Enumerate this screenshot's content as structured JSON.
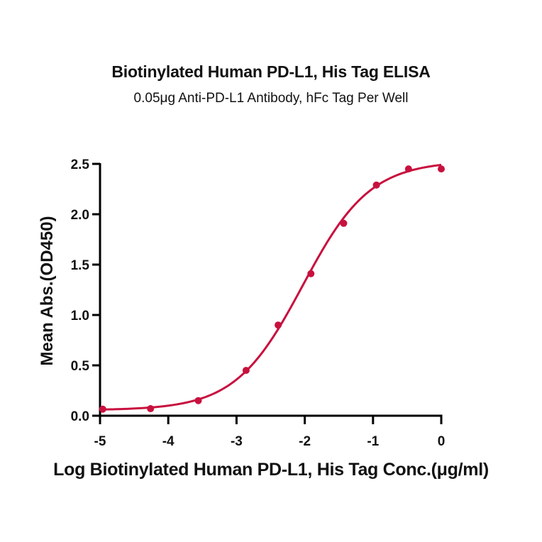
{
  "chart_data": {
    "type": "scatter",
    "title": "Biotinylated Human PD-L1, His Tag ELISA",
    "subtitle": "0.05μg Anti-PD-L1 Antibody, hFc Tag Per Well",
    "xlabel": "Log Biotinylated Human PD-L1, His Tag Conc.(μg/ml)",
    "ylabel": "Mean Abs.(OD450)",
    "xlim": [
      -5,
      0
    ],
    "ylim": [
      0,
      2.5
    ],
    "x_ticks": [
      -5,
      -4,
      -3,
      -2,
      -1,
      0
    ],
    "x_tick_labels": [
      "-5",
      "-4",
      "-3",
      "-2",
      "-1",
      "0"
    ],
    "y_ticks": [
      0,
      0.5,
      1.0,
      1.5,
      2.0,
      2.5
    ],
    "y_tick_labels": [
      "0.0",
      "0.5",
      "1.0",
      "1.5",
      "2.0",
      "2.5"
    ],
    "grid": false,
    "legend": null,
    "series": [
      {
        "name": "Biotinylated Human PD-L1, His Tag",
        "color": "#C8103E",
        "x": [
          -4.96,
          -4.26,
          -3.56,
          -2.86,
          -2.39,
          -1.91,
          -1.43,
          -0.95,
          -0.48,
          0.0
        ],
        "y": [
          0.065,
          0.07,
          0.15,
          0.45,
          0.9,
          1.41,
          1.91,
          2.29,
          2.45,
          2.45
        ],
        "fit": {
          "model": "4PL",
          "bottom": 0.055,
          "top": 2.53,
          "log_ec50": -2.03,
          "hill_slope": 0.88
        }
      }
    ]
  }
}
